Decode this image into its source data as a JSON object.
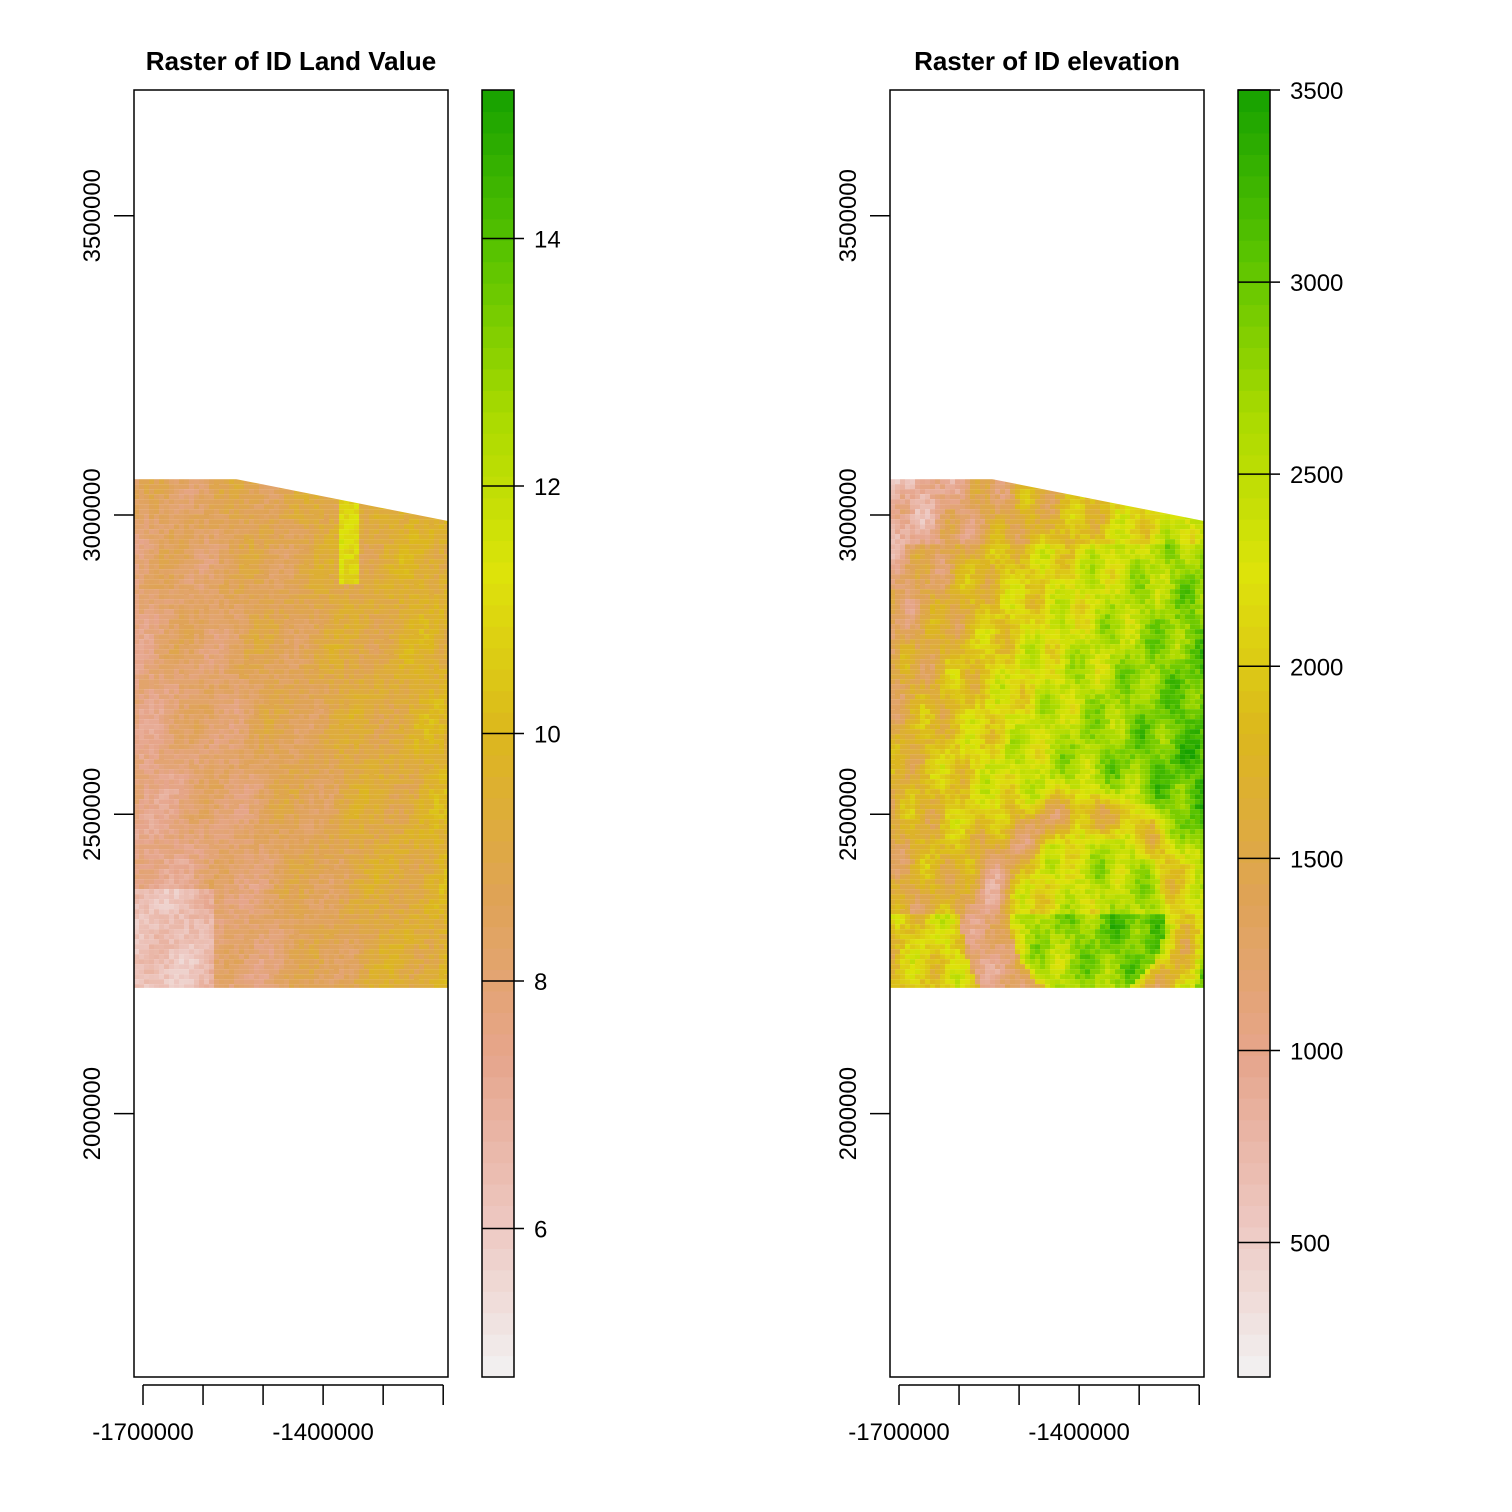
{
  "chart_data": [
    {
      "type": "heatmap",
      "title": "Raster of ID Land Value",
      "xlabel": "",
      "ylabel": "",
      "x_ticks": [
        -1700000,
        -1600000,
        -1500000,
        -1400000,
        -1300000,
        -1200000
      ],
      "x_tick_labels": [
        "-1700000",
        "-1400000"
      ],
      "xlim": [
        -1715000,
        -1192000
      ],
      "y_ticks": [
        3500000,
        3000000,
        2500000,
        2000000
      ],
      "y_tick_labels": [
        "3500000",
        "3000000",
        "2500000",
        "2000000"
      ],
      "ylim": [
        1560000,
        3710000
      ],
      "data_extent": {
        "x": [
          -1715000,
          -1192000
        ],
        "y": [
          2210000,
          3060000
        ],
        "top_edge_right_y": 2990000,
        "top_edge_break_x": -1545000
      },
      "legend": {
        "min": 4.8,
        "max": 15.2,
        "ticks": [
          6,
          8,
          10,
          12,
          14
        ],
        "tick_labels": [
          "6",
          "8",
          "10",
          "12",
          "14"
        ],
        "colors": [
          "#f2f2f2",
          "#edc6bf",
          "#e6a58c",
          "#dfa355",
          "#dcb71d",
          "#dde30a",
          "#a8da00",
          "#58c300",
          "#16a100"
        ]
      },
      "palette": {
        "low": "#e8b0a0",
        "mid": "#e09c55",
        "high": "#c9d400"
      }
    },
    {
      "type": "heatmap",
      "title": "Raster of ID elevation",
      "xlabel": "",
      "ylabel": "",
      "x_ticks": [
        -1700000,
        -1600000,
        -1500000,
        -1400000,
        -1300000,
        -1200000
      ],
      "x_tick_labels": [
        "-1700000",
        "-1400000"
      ],
      "xlim": [
        -1715000,
        -1192000
      ],
      "y_ticks": [
        3500000,
        3000000,
        2500000,
        2000000
      ],
      "y_tick_labels": [
        "3500000",
        "3000000",
        "2500000",
        "2000000"
      ],
      "ylim": [
        1560000,
        3710000
      ],
      "data_extent": {
        "x": [
          -1715000,
          -1192000
        ],
        "y": [
          2210000,
          3060000
        ],
        "top_edge_right_y": 2990000,
        "top_edge_break_x": -1545000
      },
      "legend": {
        "min": 150,
        "max": 3500,
        "ticks": [
          500,
          1000,
          1500,
          2000,
          2500,
          3000,
          3500
        ],
        "tick_labels": [
          "500",
          "1000",
          "1500",
          "2000",
          "2500",
          "3000",
          "3500"
        ],
        "colors": [
          "#f2f2f2",
          "#edc6bf",
          "#e6a58c",
          "#dfa355",
          "#dcb71d",
          "#dde30a",
          "#a8da00",
          "#58c300",
          "#16a100"
        ]
      },
      "palette": {
        "low": "#f0e0dc",
        "mid": "#e3a07c",
        "high": "#3fb400"
      }
    }
  ]
}
